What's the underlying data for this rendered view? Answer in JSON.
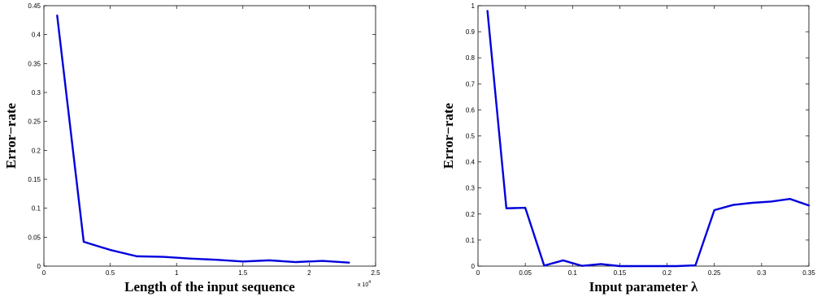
{
  "chart_data": [
    {
      "type": "line",
      "title": "",
      "xlabel": "Length of the input sequence",
      "ylabel": "Error−rate",
      "x_exponent_label": "x 10",
      "x_exponent_power": "4",
      "xlim": [
        0,
        2.5
      ],
      "ylim": [
        0,
        0.45
      ],
      "xticks": [
        "0",
        "0.5",
        "1",
        "1.5",
        "2",
        "2.5"
      ],
      "yticks": [
        "0",
        "0.05",
        "0.1",
        "0.15",
        "0.2",
        "0.25",
        "0.3",
        "0.35",
        "0.4",
        "0.45"
      ],
      "grid": false,
      "series": [
        {
          "color": "#0000dd",
          "x": [
            0.1,
            0.3,
            0.5,
            0.7,
            0.9,
            1.1,
            1.3,
            1.5,
            1.7,
            1.9,
            2.1,
            2.3
          ],
          "y": [
            0.433,
            0.042,
            0.028,
            0.017,
            0.016,
            0.013,
            0.011,
            0.008,
            0.01,
            0.007,
            0.009,
            0.006
          ]
        }
      ]
    },
    {
      "type": "line",
      "title": "",
      "xlabel": "Input parameter λ",
      "ylabel": "Error−rate",
      "xlim": [
        0,
        0.35
      ],
      "ylim": [
        0,
        1
      ],
      "xticks": [
        "0",
        "0.05",
        "0.1",
        "0.15",
        "0.2",
        "0.25",
        "0.3",
        "0.35"
      ],
      "yticks": [
        "0",
        "0.1",
        "0.2",
        "0.3",
        "0.4",
        "0.5",
        "0.6",
        "0.7",
        "0.8",
        "0.9",
        "1"
      ],
      "grid": false,
      "series": [
        {
          "color": "#0000dd",
          "x": [
            0.01,
            0.03,
            0.05,
            0.07,
            0.09,
            0.11,
            0.13,
            0.15,
            0.17,
            0.19,
            0.21,
            0.23,
            0.25,
            0.27,
            0.29,
            0.31,
            0.33,
            0.35
          ],
          "y": [
            0.98,
            0.222,
            0.224,
            0.002,
            0.022,
            0.001,
            0.008,
            0.0,
            0.0,
            0.0,
            0.0,
            0.003,
            0.215,
            0.235,
            0.243,
            0.248,
            0.258,
            0.233
          ]
        }
      ]
    }
  ]
}
